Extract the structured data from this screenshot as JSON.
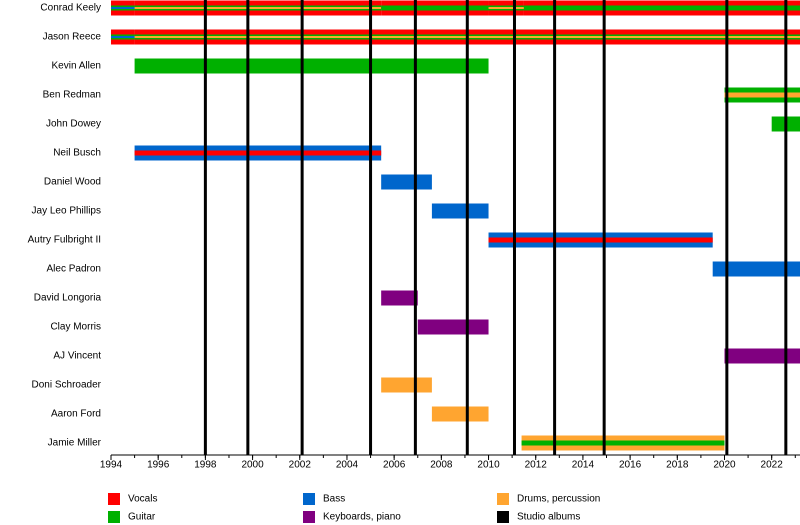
{
  "chart_data": {
    "type": "timeline",
    "series": [
      {
        "name": "Vocals",
        "color": "#ff0000"
      },
      {
        "name": "Guitar",
        "color": "#00b000"
      },
      {
        "name": "Bass",
        "color": "#0066cc"
      },
      {
        "name": "Keyboards, piano",
        "color": "#800080"
      },
      {
        "name": "Drums, percussion",
        "color": "#ffa530"
      },
      {
        "name": "Studio albums",
        "color": "#000000"
      }
    ],
    "members": [
      {
        "name": "Conrad Keely",
        "periods": [
          {
            "start": 1994,
            "end": 1995,
            "roles": [
              "Vocals",
              "Guitar",
              "Bass"
            ]
          },
          {
            "start": 1995,
            "end": 2005.45,
            "roles": [
              "Vocals",
              "Guitar",
              "Drums, percussion"
            ]
          },
          {
            "start": 2005.45,
            "end": 2010,
            "roles": [
              "Vocals",
              "Guitar"
            ]
          },
          {
            "start": 2010,
            "end": 2011.5,
            "roles": [
              "Vocals",
              "Guitar",
              "Drums, percussion"
            ]
          },
          {
            "start": 2011.5,
            "end": 2023.2,
            "roles": [
              "Vocals",
              "Guitar"
            ]
          }
        ]
      },
      {
        "name": "Jason Reece",
        "periods": [
          {
            "start": 1994,
            "end": 1995,
            "roles": [
              "Vocals",
              "Guitar",
              "Bass"
            ]
          },
          {
            "start": 1995,
            "end": 2023.2,
            "roles": [
              "Vocals",
              "Guitar",
              "Drums, percussion"
            ]
          }
        ]
      },
      {
        "name": "Kevin Allen",
        "periods": [
          {
            "start": 1995,
            "end": 2010,
            "roles": [
              "Guitar"
            ]
          }
        ]
      },
      {
        "name": "Ben Redman",
        "periods": [
          {
            "start": 2020,
            "end": 2023.2,
            "roles": [
              "Guitar",
              "Drums, percussion"
            ]
          }
        ]
      },
      {
        "name": "John Dowey",
        "periods": [
          {
            "start": 2022,
            "end": 2023.2,
            "roles": [
              "Guitar"
            ]
          }
        ]
      },
      {
        "name": "Neil Busch",
        "periods": [
          {
            "start": 1995,
            "end": 2005.45,
            "roles": [
              "Bass",
              "Vocals"
            ]
          }
        ]
      },
      {
        "name": "Daniel Wood",
        "periods": [
          {
            "start": 2005.45,
            "end": 2007.6,
            "roles": [
              "Bass"
            ]
          }
        ]
      },
      {
        "name": "Jay Leo Phillips",
        "periods": [
          {
            "start": 2007.6,
            "end": 2010,
            "roles": [
              "Bass"
            ]
          }
        ]
      },
      {
        "name": "Autry Fulbright II",
        "periods": [
          {
            "start": 2010,
            "end": 2019.5,
            "roles": [
              "Bass",
              "Vocals"
            ]
          }
        ]
      },
      {
        "name": "Alec Padron",
        "periods": [
          {
            "start": 2019.5,
            "end": 2023.2,
            "roles": [
              "Bass"
            ]
          }
        ]
      },
      {
        "name": "David Longoria",
        "periods": [
          {
            "start": 2005.45,
            "end": 2007,
            "roles": [
              "Keyboards, piano"
            ]
          }
        ]
      },
      {
        "name": "Clay Morris",
        "periods": [
          {
            "start": 2007,
            "end": 2010,
            "roles": [
              "Keyboards, piano"
            ]
          }
        ]
      },
      {
        "name": "AJ Vincent",
        "periods": [
          {
            "start": 2020,
            "end": 2023.2,
            "roles": [
              "Keyboards, piano"
            ]
          }
        ]
      },
      {
        "name": "Doni Schroader",
        "periods": [
          {
            "start": 2005.45,
            "end": 2007.6,
            "roles": [
              "Drums, percussion"
            ]
          }
        ]
      },
      {
        "name": "Aaron Ford",
        "periods": [
          {
            "start": 2007.6,
            "end": 2010,
            "roles": [
              "Drums, percussion"
            ]
          }
        ]
      },
      {
        "name": "Jamie Miller",
        "periods": [
          {
            "start": 2011.4,
            "end": 2020,
            "roles": [
              "Drums, percussion",
              "Guitar"
            ]
          }
        ]
      }
    ],
    "albums": [
      1998,
      1999.8,
      2002.1,
      2005,
      2006.9,
      2009.1,
      2011.1,
      2012.8,
      2014.9,
      2020.1,
      2022.6
    ],
    "xlim": [
      1994,
      2023.2
    ],
    "xticks": [
      1994,
      1996,
      1998,
      2000,
      2002,
      2004,
      2006,
      2008,
      2010,
      2012,
      2014,
      2016,
      2018,
      2020,
      2022
    ]
  }
}
